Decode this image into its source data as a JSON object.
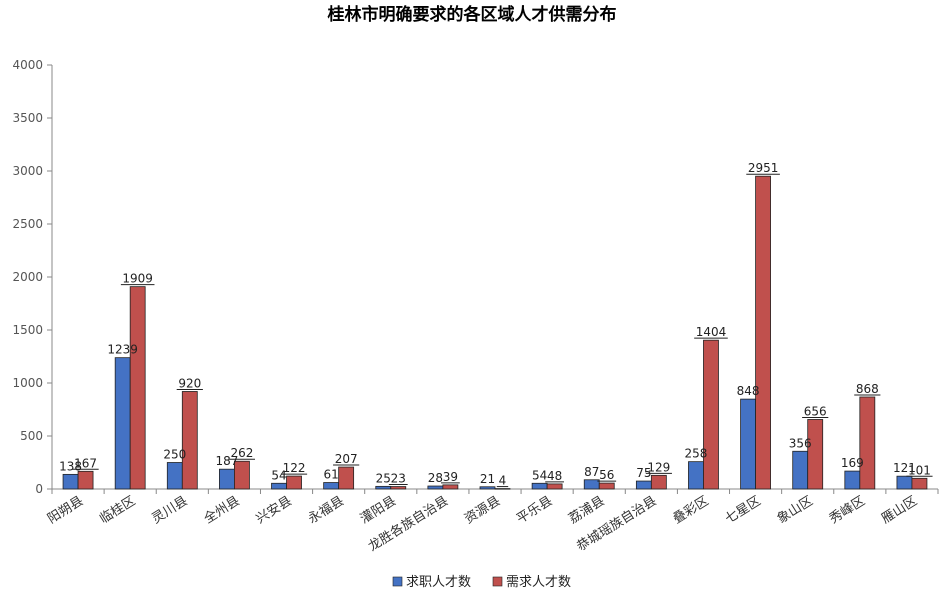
{
  "chart_data": {
    "type": "bar",
    "title": "桂林市明确要求的各区域人才供需分布",
    "xlabel": "",
    "ylabel": "",
    "ylim": [
      0,
      4000
    ],
    "yticks": [
      0,
      500,
      1000,
      1500,
      2000,
      2500,
      3000,
      3500,
      4000
    ],
    "grid": false,
    "legend_position": "bottom",
    "categories": [
      "阳朔县",
      "临桂区",
      "灵川县",
      "全州县",
      "兴安县",
      "永福县",
      "灌阳县",
      "龙胜各族自治县",
      "资源县",
      "平乐县",
      "荔浦县",
      "恭城瑶族自治县",
      "叠彩区",
      "七星区",
      "象山区",
      "秀峰区",
      "雁山区"
    ],
    "series": [
      {
        "name": "求职人才数",
        "color": "#4472C4",
        "values": [
          138,
          1239,
          250,
          187,
          54,
          61,
          25,
          28,
          21,
          54,
          87,
          75,
          258,
          848,
          356,
          169,
          121
        ]
      },
      {
        "name": "需求人才数",
        "color": "#C0504D",
        "values": [
          167,
          1909,
          920,
          262,
          122,
          207,
          23,
          39,
          4,
          48,
          56,
          129,
          1404,
          2951,
          656,
          868,
          101
        ]
      }
    ]
  }
}
